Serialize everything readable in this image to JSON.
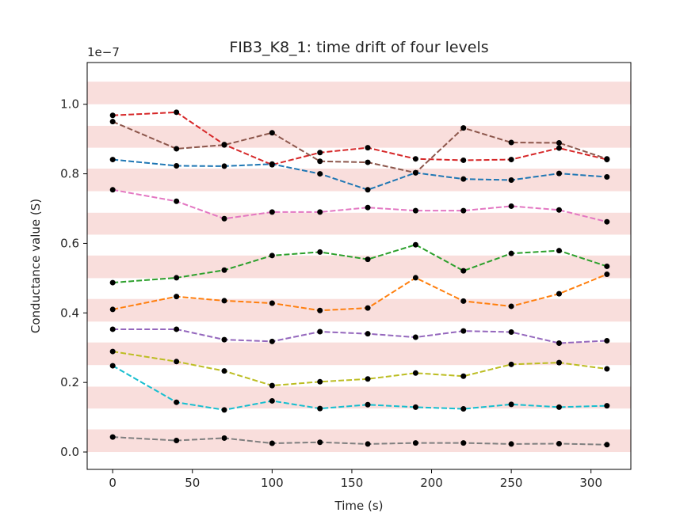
{
  "chart_data": {
    "type": "line",
    "title": "FIB3_K8_1: time drift of four levels",
    "xlabel": "Time (s)",
    "ylabel": "Conductance value (S)",
    "y_offset_text": "1e−7",
    "y_scale_exponent": -7,
    "xlim": [
      -16,
      325
    ],
    "ylim": [
      -0.05,
      1.12
    ],
    "x_ticks": [
      0,
      50,
      100,
      150,
      200,
      250,
      300
    ],
    "x_tick_labels": [
      "0",
      "50",
      "100",
      "150",
      "200",
      "250",
      "300"
    ],
    "y_ticks": [
      0.0,
      0.2,
      0.4,
      0.6,
      0.8,
      1.0
    ],
    "y_tick_labels": [
      "0.0",
      "0.2",
      "0.4",
      "0.6",
      "0.8",
      "1.0"
    ],
    "grid": false,
    "legend": "none",
    "bands": [
      [
        0.0,
        0.065
      ],
      [
        0.125,
        0.188
      ],
      [
        0.25,
        0.315
      ],
      [
        0.375,
        0.44
      ],
      [
        0.5,
        0.565
      ],
      [
        0.625,
        0.688
      ],
      [
        0.75,
        0.815
      ],
      [
        0.875,
        0.938
      ],
      [
        1.0,
        1.065
      ]
    ],
    "band_color": "#f9dedc",
    "marker_color": "#000000",
    "x": [
      0,
      40,
      70,
      100,
      130,
      160,
      190,
      220,
      250,
      280,
      310
    ],
    "series": [
      {
        "color": "#d62728",
        "values": [
          0.968,
          0.977,
          0.884,
          0.826,
          0.861,
          0.875,
          0.843,
          0.839,
          0.841,
          0.874,
          0.841
        ]
      },
      {
        "color": "#8c564b",
        "values": [
          0.95,
          0.872,
          0.883,
          0.918,
          0.836,
          0.833,
          0.803,
          0.932,
          0.89,
          0.889,
          0.843
        ]
      },
      {
        "color": "#1f77b4",
        "values": [
          0.841,
          0.823,
          0.822,
          0.828,
          0.8,
          0.754,
          0.803,
          0.785,
          0.782,
          0.801,
          0.791
        ]
      },
      {
        "color": "#e377c2",
        "values": [
          0.754,
          0.721,
          0.671,
          0.69,
          0.69,
          0.703,
          0.694,
          0.694,
          0.707,
          0.696,
          0.662
        ]
      },
      {
        "color": "#2ca02c",
        "values": [
          0.487,
          0.501,
          0.523,
          0.565,
          0.575,
          0.554,
          0.596,
          0.521,
          0.571,
          0.579,
          0.534
        ]
      },
      {
        "color": "#ff7f0e",
        "values": [
          0.41,
          0.447,
          0.435,
          0.428,
          0.407,
          0.414,
          0.501,
          0.434,
          0.419,
          0.455,
          0.511
        ]
      },
      {
        "color": "#9467bd",
        "values": [
          0.353,
          0.353,
          0.323,
          0.318,
          0.346,
          0.34,
          0.33,
          0.348,
          0.345,
          0.313,
          0.32
        ]
      },
      {
        "color": "#bcbd22",
        "values": [
          0.289,
          0.26,
          0.233,
          0.191,
          0.202,
          0.21,
          0.227,
          0.218,
          0.252,
          0.257,
          0.239
        ]
      },
      {
        "color": "#17becf",
        "values": [
          0.248,
          0.143,
          0.121,
          0.147,
          0.125,
          0.136,
          0.129,
          0.124,
          0.137,
          0.129,
          0.133
        ]
      },
      {
        "color": "#7f7f7f",
        "values": [
          0.043,
          0.033,
          0.04,
          0.025,
          0.028,
          0.023,
          0.026,
          0.026,
          0.023,
          0.024,
          0.021
        ]
      }
    ]
  }
}
